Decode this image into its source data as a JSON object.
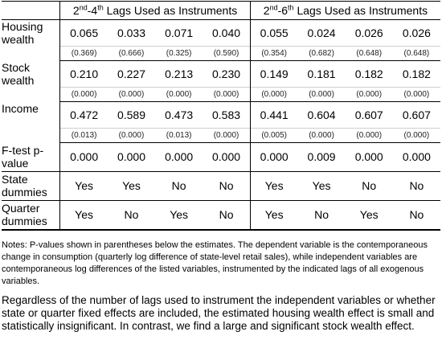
{
  "table": {
    "group_headers": [
      {
        "ordinal_start": "2",
        "sup_start": "nd",
        "dash": "-",
        "ordinal_end": "4",
        "sup_end": "th",
        "text": " Lags Used as Instruments"
      },
      {
        "ordinal_start": "2",
        "sup_start": "nd",
        "dash": "-",
        "ordinal_end": "6",
        "sup_end": "th",
        "text": " Lags Used as Instruments"
      }
    ],
    "rows_with_se": [
      {
        "label": "Housing wealth",
        "values": [
          "0.065",
          "0.033",
          "0.071",
          "0.040",
          "0.055",
          "0.024",
          "0.026",
          "0.026"
        ],
        "se": [
          "(0.369)",
          "(0.666)",
          "(0.325)",
          "(0.590)",
          "(0.354)",
          "(0.682)",
          "(0.648)",
          "(0.648)"
        ]
      },
      {
        "label": "Stock wealth",
        "values": [
          "0.210",
          "0.227",
          "0.213",
          "0.230",
          "0.149",
          "0.181",
          "0.182",
          "0.182"
        ],
        "se": [
          "(0.000)",
          "(0.000)",
          "(0.000)",
          "(0.000)",
          "(0.000)",
          "(0.000)",
          "(0.000)",
          "(0.000)"
        ]
      },
      {
        "label": "Income",
        "values": [
          "0.472",
          "0.589",
          "0.473",
          "0.583",
          "0.441",
          "0.604",
          "0.607",
          "0.607"
        ],
        "se": [
          "(0.013)",
          "(0.000)",
          "(0.013)",
          "(0.000)",
          "(0.005)",
          "(0.000)",
          "(0.000)",
          "(0.000)"
        ]
      }
    ],
    "rows_single": [
      {
        "label": "F-test p-value",
        "values": [
          "0.000",
          "0.000",
          "0.000",
          "0.000",
          "0.000",
          "0.009",
          "0.000",
          "0.000"
        ]
      },
      {
        "label": "State dummies",
        "values": [
          "Yes",
          "Yes",
          "No",
          "No",
          "Yes",
          "Yes",
          "No",
          "No"
        ]
      },
      {
        "label": "Quarter dummies",
        "values": [
          "Yes",
          "No",
          "Yes",
          "No",
          "Yes",
          "No",
          "Yes",
          "No"
        ]
      }
    ]
  },
  "notes": "Notes: P-values shown in parentheses below the estimates. The dependent variable is the contemporaneous change in consumption (quarterly log difference of state-level retail sales), while independent variables are contemporaneous log differences of the listed variables, instrumented by the indicated lags of all exogenous variables.",
  "paragraph": "Regardless of the number of lags used to instrument the independent variables or whether state or quarter fixed effects are included, the estimated housing wealth effect is small and statistically insignificant. In contrast, we find a large and significant stock wealth effect."
}
